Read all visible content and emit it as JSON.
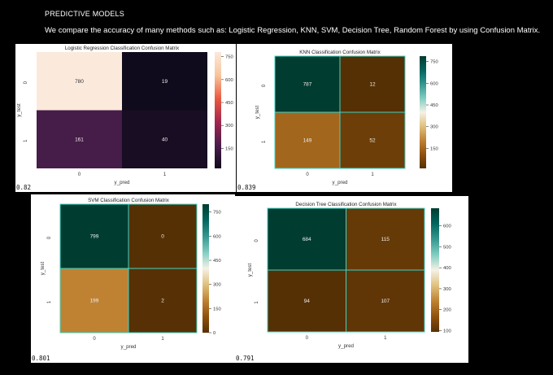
{
  "header": {
    "title": "PREDICTIVE MODELS",
    "subtitle": "We compare the accuracy of many methods such as: Logistic Regression, KNN, SVM, Decision Tree, Random Forest by using Confusion Matrix."
  },
  "chart_data": [
    {
      "type": "heatmap",
      "title": "Logistic Regression Classification Confusion Matrix",
      "xlabel": "y_pred",
      "ylabel": "y_test",
      "x_ticks": [
        "0",
        "1"
      ],
      "y_ticks": [
        "0",
        "1"
      ],
      "values": [
        [
          780,
          19
        ],
        [
          161,
          40
        ]
      ],
      "colorbar_ticks": [
        750,
        600,
        450,
        300,
        150
      ],
      "colorbar_range": [
        19,
        780
      ],
      "colormap": "rocket",
      "score": "0.82"
    },
    {
      "type": "heatmap",
      "title": "KNN Classification Confusion Matrix",
      "xlabel": "y_pred",
      "ylabel": "y_test",
      "x_ticks": [
        "0",
        "1"
      ],
      "y_ticks": [
        "0",
        "1"
      ],
      "values": [
        [
          787,
          12
        ],
        [
          149,
          52
        ]
      ],
      "colorbar_ticks": [
        750,
        600,
        450,
        300,
        150
      ],
      "colorbar_range": [
        12,
        787
      ],
      "colormap": "BrBG",
      "score": "0.839"
    },
    {
      "type": "heatmap",
      "title": "SVM Classification Confusion Matrix",
      "xlabel": "y_pred",
      "ylabel": "y_test",
      "x_ticks": [
        "0",
        "1"
      ],
      "y_ticks": [
        "0",
        "1"
      ],
      "values": [
        [
          799,
          0
        ],
        [
          199,
          2
        ]
      ],
      "colorbar_ticks": [
        750,
        600,
        450,
        300,
        150,
        0
      ],
      "colorbar_range": [
        0,
        799
      ],
      "colormap": "BrBG",
      "score": "0.801"
    },
    {
      "type": "heatmap",
      "title": "Decision Tree Classification Confusion Matrix",
      "xlabel": "y_pred",
      "ylabel": "y_test",
      "x_ticks": [
        "0",
        "1"
      ],
      "y_ticks": [
        "0",
        "1"
      ],
      "values": [
        [
          684,
          115
        ],
        [
          94,
          107
        ]
      ],
      "colorbar_ticks": [
        600,
        500,
        400,
        300,
        200,
        100
      ],
      "colorbar_range": [
        94,
        684
      ],
      "colormap": "BrBG",
      "score": "0.791"
    }
  ],
  "colors": {
    "background": "#000000",
    "header_text": "#ffffff",
    "panel_background": "#ffffff",
    "cell_border": "#3fd3c6",
    "rocket_stops": [
      "#100b1c",
      "#4a1d4b",
      "#a2264f",
      "#ea5a3f",
      "#f8c59b",
      "#fbe9dc"
    ],
    "brbg_stops": [
      "#563005",
      "#8f520d",
      "#bf8233",
      "#dfc17e",
      "#f5f1e6",
      "#80cdc1",
      "#35978f",
      "#01665e",
      "#003c30"
    ]
  }
}
